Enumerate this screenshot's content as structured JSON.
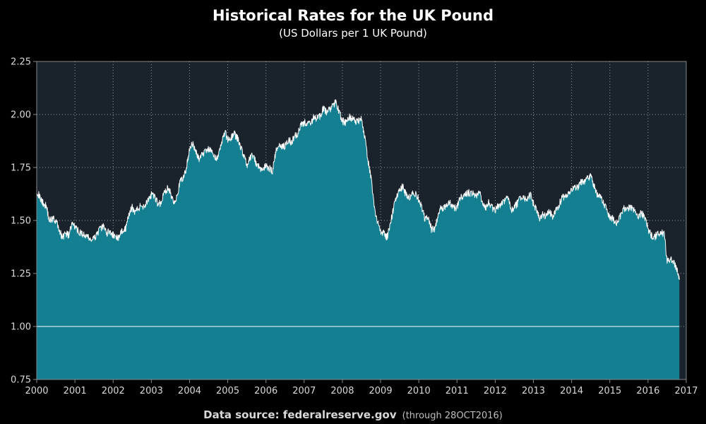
{
  "chart_data": {
    "type": "area",
    "title": "Historical Rates for the UK Pound",
    "subtitle": "(US Dollars per 1 UK Pound)",
    "footer": {
      "source_label": "Data source: federalreserve.gov",
      "note": "(through 28OCT2016)"
    },
    "xlabel": "",
    "ylabel": "",
    "xlim": [
      2000,
      2017
    ],
    "ylim": [
      0.75,
      2.25
    ],
    "x_ticks": [
      "2000",
      "2001",
      "2002",
      "2003",
      "2004",
      "2005",
      "2006",
      "2007",
      "2008",
      "2009",
      "2010",
      "2011",
      "2012",
      "2013",
      "2014",
      "2015",
      "2016",
      "2017"
    ],
    "y_ticks": [
      "0.75",
      "1.00",
      "1.25",
      "1.50",
      "1.75",
      "2.00",
      "2.25"
    ],
    "reference_line": 1.0,
    "grid": true,
    "legend": "none",
    "colors": {
      "background": "#000000",
      "plot_background": "#1a222b",
      "area_fill": "#137f91",
      "line": "#ffffff",
      "grid": "#b0b8bf",
      "axis": "#8a8a8a"
    },
    "series": [
      {
        "x": [
          2000.0,
          2000.08,
          2000.17,
          2000.25,
          2000.33,
          2000.42,
          2000.5,
          2000.58,
          2000.67,
          2000.75,
          2000.83,
          2000.92,
          2001.0,
          2001.08,
          2001.17,
          2001.25,
          2001.33,
          2001.42,
          2001.5,
          2001.58,
          2001.67,
          2001.75,
          2001.83,
          2001.92,
          2002.0,
          2002.08,
          2002.17,
          2002.25,
          2002.33,
          2002.42,
          2002.5,
          2002.58,
          2002.67,
          2002.75,
          2002.83,
          2002.92,
          2003.0,
          2003.08,
          2003.17,
          2003.25,
          2003.33,
          2003.42,
          2003.5,
          2003.58,
          2003.67,
          2003.75,
          2003.83,
          2003.92,
          2004.0,
          2004.08,
          2004.17,
          2004.25,
          2004.33,
          2004.42,
          2004.5,
          2004.58,
          2004.67,
          2004.75,
          2004.83,
          2004.92,
          2005.0,
          2005.08,
          2005.17,
          2005.25,
          2005.33,
          2005.42,
          2005.5,
          2005.58,
          2005.67,
          2005.75,
          2005.83,
          2005.92,
          2006.0,
          2006.08,
          2006.17,
          2006.25,
          2006.33,
          2006.42,
          2006.5,
          2006.58,
          2006.67,
          2006.75,
          2006.83,
          2006.92,
          2007.0,
          2007.08,
          2007.17,
          2007.25,
          2007.33,
          2007.42,
          2007.5,
          2007.58,
          2007.67,
          2007.75,
          2007.83,
          2007.92,
          2008.0,
          2008.08,
          2008.17,
          2008.25,
          2008.33,
          2008.42,
          2008.5,
          2008.58,
          2008.67,
          2008.75,
          2008.83,
          2008.92,
          2009.0,
          2009.08,
          2009.17,
          2009.25,
          2009.33,
          2009.42,
          2009.5,
          2009.58,
          2009.67,
          2009.75,
          2009.83,
          2009.92,
          2010.0,
          2010.08,
          2010.17,
          2010.25,
          2010.33,
          2010.42,
          2010.5,
          2010.58,
          2010.67,
          2010.75,
          2010.83,
          2010.92,
          2011.0,
          2011.08,
          2011.17,
          2011.25,
          2011.33,
          2011.42,
          2011.5,
          2011.58,
          2011.67,
          2011.75,
          2011.83,
          2011.92,
          2012.0,
          2012.08,
          2012.17,
          2012.25,
          2012.33,
          2012.42,
          2012.5,
          2012.58,
          2012.67,
          2012.75,
          2012.83,
          2012.92,
          2013.0,
          2013.08,
          2013.17,
          2013.25,
          2013.33,
          2013.42,
          2013.5,
          2013.58,
          2013.67,
          2013.75,
          2013.83,
          2013.92,
          2014.0,
          2014.08,
          2014.17,
          2014.25,
          2014.33,
          2014.42,
          2014.5,
          2014.58,
          2014.67,
          2014.75,
          2014.83,
          2014.92,
          2015.0,
          2015.08,
          2015.17,
          2015.25,
          2015.33,
          2015.42,
          2015.5,
          2015.58,
          2015.67,
          2015.75,
          2015.83,
          2015.92,
          2016.0,
          2016.08,
          2016.17,
          2016.25,
          2016.33,
          2016.42,
          2016.5,
          2016.58,
          2016.67,
          2016.75,
          2016.82
        ],
        "y": [
          1.64,
          1.61,
          1.58,
          1.57,
          1.5,
          1.51,
          1.5,
          1.46,
          1.42,
          1.44,
          1.43,
          1.48,
          1.47,
          1.45,
          1.44,
          1.43,
          1.42,
          1.41,
          1.41,
          1.44,
          1.46,
          1.47,
          1.44,
          1.45,
          1.43,
          1.42,
          1.42,
          1.46,
          1.46,
          1.53,
          1.56,
          1.54,
          1.56,
          1.57,
          1.57,
          1.6,
          1.62,
          1.61,
          1.58,
          1.58,
          1.63,
          1.65,
          1.63,
          1.59,
          1.61,
          1.68,
          1.7,
          1.75,
          1.84,
          1.86,
          1.82,
          1.79,
          1.81,
          1.83,
          1.84,
          1.82,
          1.79,
          1.81,
          1.86,
          1.92,
          1.88,
          1.89,
          1.91,
          1.89,
          1.85,
          1.81,
          1.76,
          1.79,
          1.81,
          1.76,
          1.75,
          1.74,
          1.76,
          1.75,
          1.73,
          1.82,
          1.86,
          1.85,
          1.85,
          1.88,
          1.87,
          1.9,
          1.91,
          1.96,
          1.96,
          1.96,
          1.95,
          1.99,
          1.98,
          1.99,
          2.03,
          2.01,
          2.02,
          2.04,
          2.06,
          2.01,
          1.97,
          1.96,
          1.99,
          1.98,
          1.97,
          1.97,
          1.99,
          1.9,
          1.78,
          1.7,
          1.57,
          1.49,
          1.45,
          1.44,
          1.42,
          1.48,
          1.55,
          1.62,
          1.64,
          1.66,
          1.62,
          1.61,
          1.63,
          1.62,
          1.6,
          1.56,
          1.5,
          1.52,
          1.46,
          1.46,
          1.52,
          1.56,
          1.56,
          1.58,
          1.58,
          1.56,
          1.56,
          1.61,
          1.62,
          1.63,
          1.63,
          1.63,
          1.61,
          1.64,
          1.58,
          1.56,
          1.59,
          1.56,
          1.55,
          1.57,
          1.58,
          1.59,
          1.61,
          1.55,
          1.56,
          1.58,
          1.61,
          1.61,
          1.6,
          1.62,
          1.58,
          1.55,
          1.51,
          1.53,
          1.52,
          1.54,
          1.52,
          1.55,
          1.57,
          1.61,
          1.61,
          1.62,
          1.65,
          1.65,
          1.66,
          1.68,
          1.68,
          1.7,
          1.71,
          1.67,
          1.62,
          1.61,
          1.58,
          1.56,
          1.51,
          1.51,
          1.48,
          1.51,
          1.55,
          1.56,
          1.56,
          1.56,
          1.54,
          1.52,
          1.54,
          1.51,
          1.46,
          1.43,
          1.42,
          1.44,
          1.44,
          1.44,
          1.31,
          1.32,
          1.31,
          1.27,
          1.22
        ]
      }
    ]
  }
}
